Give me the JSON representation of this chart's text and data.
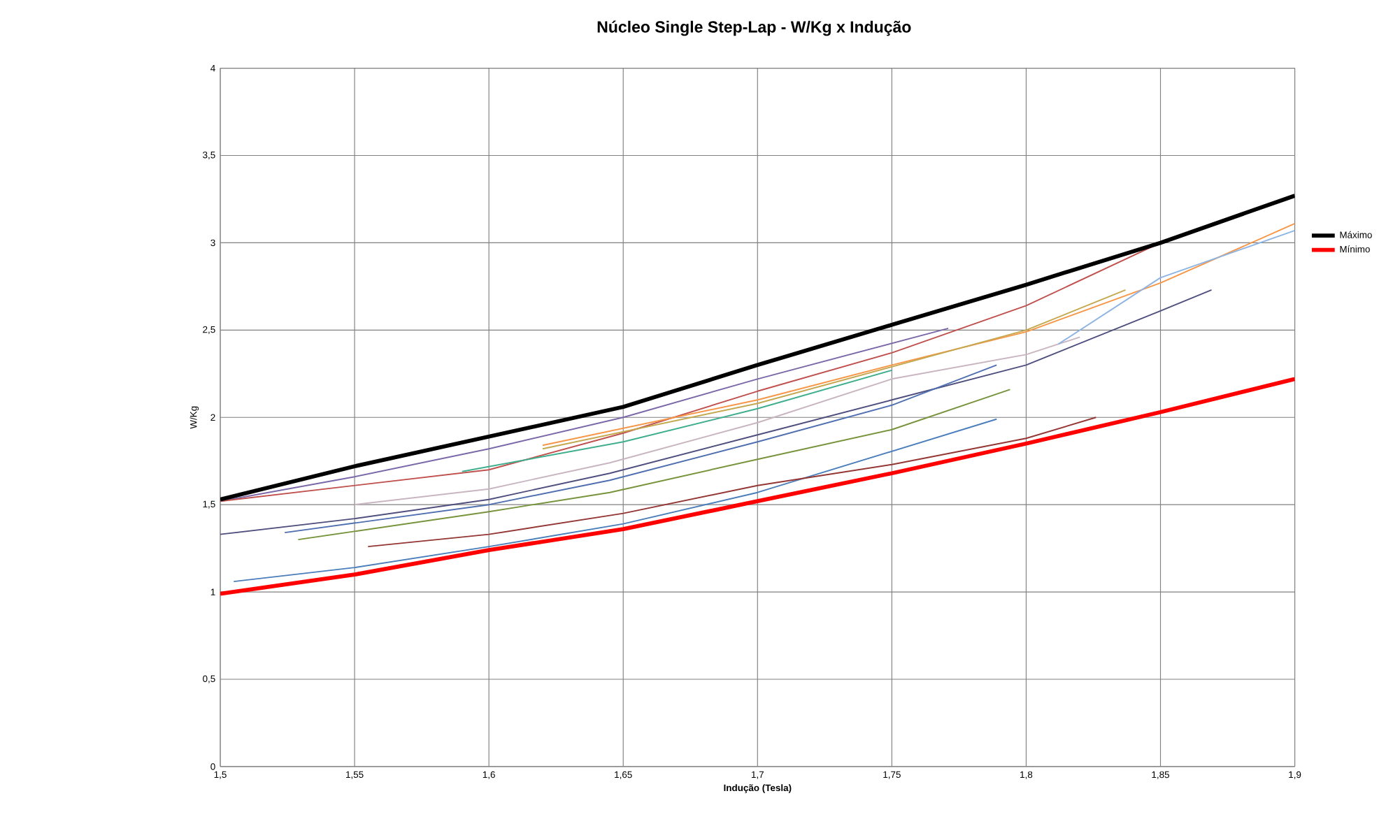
{
  "chart_data": {
    "type": "line",
    "title": "Núcleo Single Step-Lap - W/Kg x Indução",
    "xlabel": "Indução (Tesla)",
    "ylabel": "W/Kg",
    "xlim": [
      1.5,
      1.9
    ],
    "ylim": [
      0,
      4
    ],
    "xticks": [
      {
        "value": 1.5,
        "label": "1,5"
      },
      {
        "value": 1.55,
        "label": "1,55"
      },
      {
        "value": 1.6,
        "label": "1,6"
      },
      {
        "value": 1.65,
        "label": "1,65"
      },
      {
        "value": 1.7,
        "label": "1,7"
      },
      {
        "value": 1.75,
        "label": "1,75"
      },
      {
        "value": 1.8,
        "label": "1,8"
      },
      {
        "value": 1.85,
        "label": "1,85"
      },
      {
        "value": 1.9,
        "label": "1,9"
      }
    ],
    "yticks": [
      0,
      {
        "value": 0.5,
        "label": "0,5"
      },
      1,
      {
        "value": 1.5,
        "label": "1,5"
      },
      2,
      {
        "value": 2.5,
        "label": "2,5"
      },
      3,
      {
        "value": 3.5,
        "label": "3,5"
      },
      4
    ],
    "grid": true,
    "legend": "right",
    "marker": "none",
    "line_style": "solid",
    "series": [
      {
        "color": "#7b68a8",
        "x": [
          1.5,
          1.55,
          1.6,
          1.65,
          1.7,
          1.771
        ],
        "values": [
          1.52,
          1.66,
          1.82,
          2.0,
          2.22,
          2.51
        ]
      },
      {
        "color": "#c0504d",
        "x": [
          1.5,
          1.6,
          1.65,
          1.7,
          1.75,
          1.8,
          1.85
        ],
        "values": [
          1.52,
          1.7,
          1.91,
          2.15,
          2.37,
          2.64,
          3.0
        ]
      },
      {
        "color": "#f79646",
        "x": [
          1.62,
          1.7,
          1.75,
          1.8,
          1.85,
          1.9
        ],
        "values": [
          1.84,
          2.1,
          2.3,
          2.49,
          2.77,
          3.11
        ]
      },
      {
        "color": "#c4a84f",
        "x": [
          1.62,
          1.7,
          1.75,
          1.8,
          1.837
        ],
        "values": [
          1.82,
          2.08,
          2.29,
          2.5,
          2.73
        ]
      },
      {
        "color": "#3fae8c",
        "x": [
          1.59,
          1.65,
          1.7,
          1.75
        ],
        "values": [
          1.69,
          1.86,
          2.05,
          2.27
        ]
      },
      {
        "color": "#c9b5c0",
        "x": [
          1.55,
          1.6,
          1.645,
          1.7,
          1.75,
          1.8,
          1.82
        ],
        "values": [
          1.5,
          1.59,
          1.74,
          1.97,
          2.22,
          2.36,
          2.46
        ]
      },
      {
        "color": "#8db4e2",
        "x": [
          1.812,
          1.85,
          1.9
        ],
        "values": [
          2.42,
          2.8,
          3.07
        ]
      },
      {
        "color": "#4f4f7f",
        "x": [
          1.5,
          1.55,
          1.6,
          1.645,
          1.7,
          1.75,
          1.8,
          1.85,
          1.869
        ],
        "values": [
          1.33,
          1.42,
          1.53,
          1.68,
          1.9,
          2.1,
          2.3,
          2.61,
          2.73
        ]
      },
      {
        "color": "#4f6fb0",
        "x": [
          1.524,
          1.6,
          1.645,
          1.7,
          1.75,
          1.789
        ],
        "values": [
          1.34,
          1.5,
          1.64,
          1.86,
          2.07,
          2.3
        ]
      },
      {
        "color": "#77933c",
        "x": [
          1.529,
          1.6,
          1.645,
          1.7,
          1.75,
          1.794
        ],
        "values": [
          1.3,
          1.46,
          1.57,
          1.76,
          1.93,
          2.16
        ]
      },
      {
        "color": "#4a7ebb",
        "x": [
          1.505,
          1.55,
          1.6,
          1.65,
          1.7,
          1.789
        ],
        "values": [
          1.06,
          1.14,
          1.26,
          1.39,
          1.57,
          1.99
        ]
      },
      {
        "color": "#943634",
        "x": [
          1.555,
          1.6,
          1.65,
          1.7,
          1.75,
          1.8,
          1.826
        ],
        "values": [
          1.26,
          1.33,
          1.45,
          1.61,
          1.73,
          1.88,
          2.0
        ]
      },
      {
        "name": "Máximo",
        "color": "#000000",
        "x": [
          1.5,
          1.55,
          1.6,
          1.65,
          1.7,
          1.75,
          1.8,
          1.85,
          1.9
        ],
        "values": [
          1.53,
          1.72,
          1.89,
          2.06,
          2.3,
          2.53,
          2.76,
          3.0,
          3.27
        ]
      },
      {
        "name": "Mínimo",
        "color": "#ff0000",
        "x": [
          1.5,
          1.55,
          1.6,
          1.65,
          1.7,
          1.75,
          1.8,
          1.85,
          1.9
        ],
        "values": [
          0.99,
          1.1,
          1.24,
          1.36,
          1.52,
          1.68,
          1.85,
          2.03,
          2.22
        ]
      }
    ]
  }
}
